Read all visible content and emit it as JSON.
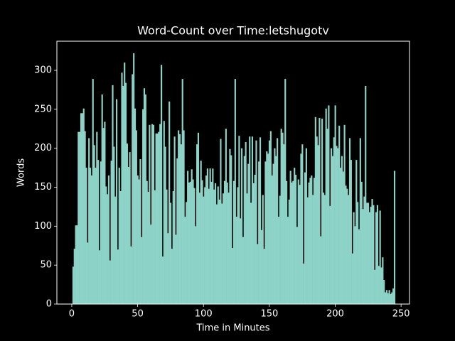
{
  "chart_data": {
    "type": "bar",
    "title": "Word-Count over Time:letshugotv",
    "x_label": "Time in Minutes",
    "y_label": "Words",
    "color": "#8dd3c7",
    "x": [
      1,
      2,
      3,
      4,
      5,
      6,
      7,
      8,
      9,
      10,
      11,
      12,
      13,
      14,
      15,
      16,
      17,
      18,
      19,
      20,
      21,
      22,
      23,
      24,
      25,
      26,
      27,
      28,
      29,
      30,
      31,
      32,
      33,
      34,
      35,
      36,
      37,
      38,
      39,
      40,
      41,
      42,
      43,
      44,
      45,
      46,
      47,
      48,
      49,
      50,
      51,
      52,
      53,
      54,
      55,
      56,
      57,
      58,
      59,
      60,
      61,
      62,
      63,
      64,
      65,
      66,
      67,
      68,
      69,
      70,
      71,
      72,
      73,
      74,
      75,
      76,
      77,
      78,
      79,
      80,
      81,
      82,
      83,
      84,
      85,
      86,
      87,
      88,
      89,
      90,
      91,
      92,
      93,
      94,
      95,
      96,
      97,
      98,
      99,
      100,
      101,
      102,
      103,
      104,
      105,
      106,
      107,
      108,
      109,
      110,
      111,
      112,
      113,
      114,
      115,
      116,
      117,
      118,
      119,
      120,
      121,
      122,
      123,
      124,
      125,
      126,
      127,
      128,
      129,
      130,
      131,
      132,
      133,
      134,
      135,
      136,
      137,
      138,
      139,
      140,
      141,
      142,
      143,
      144,
      145,
      146,
      147,
      148,
      149,
      150,
      151,
      152,
      153,
      154,
      155,
      156,
      157,
      158,
      159,
      160,
      161,
      162,
      163,
      164,
      165,
      166,
      167,
      168,
      169,
      170,
      171,
      172,
      173,
      174,
      175,
      176,
      177,
      178,
      179,
      180,
      181,
      182,
      183,
      184,
      185,
      186,
      187,
      188,
      189,
      190,
      191,
      192,
      193,
      194,
      195,
      196,
      197,
      198,
      199,
      200,
      201,
      202,
      203,
      204,
      205,
      206,
      207,
      208,
      209,
      210,
      211,
      212,
      213,
      214,
      215,
      216,
      217,
      218,
      219,
      220,
      221,
      222,
      223,
      224,
      225,
      226,
      227,
      228,
      229,
      230,
      231,
      232,
      233,
      234,
      235,
      236,
      237,
      238,
      239,
      240,
      241,
      242,
      243,
      244,
      245
    ],
    "values": [
      48,
      71,
      101,
      101,
      221,
      221,
      245,
      245,
      251,
      222,
      175,
      79,
      213,
      175,
      165,
      289,
      204,
      175,
      221,
      185,
      69,
      183,
      269,
      226,
      234,
      151,
      141,
      165,
      56,
      184,
      281,
      202,
      138,
      263,
      70,
      175,
      145,
      297,
      280,
      310,
      284,
      206,
      176,
      195,
      74,
      295,
      322,
      251,
      223,
      165,
      160,
      186,
      86,
      250,
      277,
      269,
      158,
      144,
      230,
      102,
      231,
      230,
      146,
      219,
      219,
      221,
      231,
      307,
      61,
      235,
      202,
      147,
      91,
      260,
      130,
      71,
      145,
      215,
      89,
      187,
      223,
      218,
      205,
      289,
      223,
      112,
      131,
      171,
      156,
      157,
      173,
      160,
      149,
      100,
      205,
      220,
      143,
      184,
      159,
      138,
      150,
      165,
      174,
      148,
      174,
      157,
      174,
      147,
      155,
      128,
      151,
      134,
      212,
      129,
      142,
      158,
      225,
      156,
      143,
      199,
      191,
      72,
      158,
      289,
      112,
      150,
      216,
      110,
      200,
      86,
      190,
      208,
      142,
      180,
      215,
      130,
      215,
      155,
      166,
      210,
      77,
      183,
      214,
      95,
      140,
      71,
      183,
      196,
      193,
      210,
      222,
      165,
      180,
      200,
      190,
      213,
      112,
      139,
      225,
      220,
      205,
      289,
      158,
      112,
      134,
      171,
      156,
      158,
      175,
      166,
      99,
      160,
      153,
      193,
      205,
      52,
      169,
      200,
      137,
      156,
      162,
      165,
      140,
      162,
      240,
      215,
      204,
      239,
      87,
      238,
      143,
      140,
      251,
      225,
      255,
      126,
      200,
      190,
      214,
      255,
      203,
      200,
      229,
      175,
      190,
      170,
      230,
      152,
      148,
      140,
      213,
      185,
      65,
      118,
      100,
      185,
      131,
      96,
      213,
      157,
      122,
      138,
      280,
      130,
      130,
      118,
      125,
      135,
      127,
      44,
      118,
      127,
      49,
      120,
      47,
      60,
      31,
      15,
      18,
      14,
      18,
      13,
      15,
      20,
      171
    ],
    "xlim": [
      -11.3,
      256.4
    ],
    "ylim": [
      0,
      337.4
    ],
    "xticks": [
      0,
      50,
      100,
      150,
      200,
      250
    ],
    "yticks": [
      0,
      50,
      100,
      150,
      200,
      250,
      300
    ]
  }
}
